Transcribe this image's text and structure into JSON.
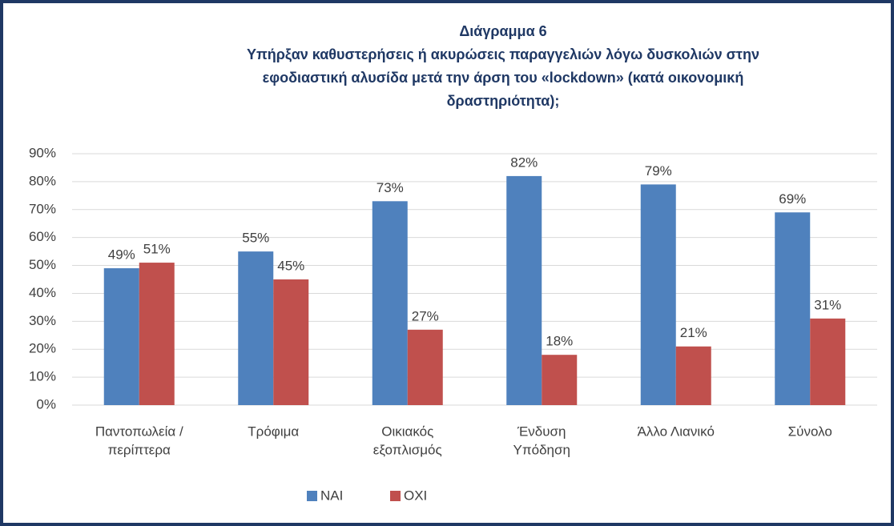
{
  "chart_data": {
    "type": "bar",
    "title": "Διάγραμμα 6",
    "subtitle": [
      "Υπήρξαν καθυστερήσεις ή ακυρώσεις παραγγελιών λόγω δυσκολιών στην",
      "εφοδιαστική αλυσίδα μετά την άρση του «lockdown» (κατά οικονομική",
      "δραστηριότητα);"
    ],
    "categories": [
      [
        "Παντοπωλεία /",
        "περίπτερα"
      ],
      [
        "Τρόφιμα"
      ],
      [
        "Οικιακός",
        "εξοπλισμός"
      ],
      [
        "Ένδυση",
        "Υπόδηση"
      ],
      [
        "Άλλο Λιανικό"
      ],
      [
        "Σύνολο"
      ]
    ],
    "series": [
      {
        "name": "ΝΑΙ",
        "color": "#4f81bd",
        "values": [
          49,
          55,
          73,
          82,
          79,
          69
        ],
        "value_labels": [
          "49%",
          "55%",
          "73%",
          "82%",
          "79%",
          "69%"
        ]
      },
      {
        "name": "ΟΧΙ",
        "color": "#c0504d",
        "values": [
          51,
          45,
          27,
          18,
          21,
          31
        ],
        "value_labels": [
          "51%",
          "45%",
          "27%",
          "18%",
          "21%",
          "31%"
        ]
      }
    ],
    "ylim": [
      0,
      90
    ],
    "yticks": [
      {
        "value": 0,
        "label": "0%"
      },
      {
        "value": 10,
        "label": "10%"
      },
      {
        "value": 20,
        "label": "20%"
      },
      {
        "value": 30,
        "label": "30%"
      },
      {
        "value": 40,
        "label": "40%"
      },
      {
        "value": 50,
        "label": "50%"
      },
      {
        "value": 60,
        "label": "60%"
      },
      {
        "value": 70,
        "label": "70%"
      },
      {
        "value": 80,
        "label": "80%"
      },
      {
        "value": 90,
        "label": "90%"
      }
    ],
    "grid": true,
    "legend": "bottom"
  }
}
